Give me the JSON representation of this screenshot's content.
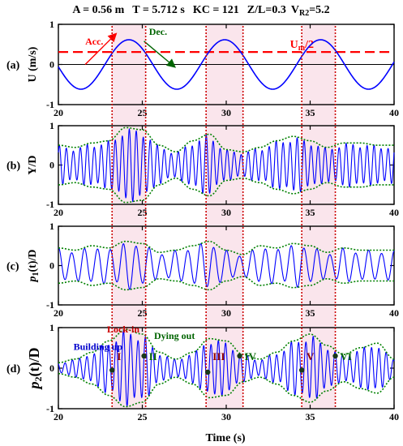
{
  "figure": {
    "title_parts": {
      "a": "A = 0.56 m",
      "t": "T = 5.712 s",
      "kc": "KC = 121",
      "zl": "Z/L=0.3",
      "vr_main": "V",
      "vr_sub": "R2",
      "vr_val": "=5.2"
    },
    "xlabel": "Time (s)"
  },
  "chart_data": [
    {
      "type": "line",
      "panel": "(a)",
      "ylabel": "U (m/s)",
      "xlim": [
        20,
        40
      ],
      "ylim": [
        -1,
        1
      ],
      "xticks": [
        "20",
        "25",
        "30",
        "35",
        "40"
      ],
      "yticks": [
        "-1",
        "0",
        "1"
      ],
      "series": [
        {
          "period_s": 5.712,
          "amplitude": 0.616,
          "mean": 0,
          "crest_times": [
            24.2,
            29.9,
            35.6
          ],
          "color": "#0000ff"
        }
      ],
      "reference_line": {
        "label_main": "U",
        "label_sub": "m",
        "label_tail": "/2",
        "value": 0.31,
        "color": "#ff0000",
        "style": "dashed"
      },
      "zero_line": 0,
      "annotations": [
        {
          "text": "Acc.",
          "color": "#ff0000",
          "arrow_from": [
            21.6,
            0.0
          ],
          "arrow_to": [
            23.4,
            0.75
          ]
        },
        {
          "text": "Dec.",
          "color": "#006400",
          "arrow_from": [
            25.1,
            0.58
          ],
          "arrow_to": [
            26.9,
            -0.05
          ]
        }
      ]
    },
    {
      "type": "line",
      "panel": "(b)",
      "ylabel": "Y/D",
      "xlim": [
        20,
        40
      ],
      "ylim": [
        -1,
        1
      ],
      "xticks": [
        "20",
        "25",
        "30",
        "35",
        "40"
      ],
      "yticks": [
        "-1",
        "0",
        "1"
      ],
      "series": [
        {
          "kind": "response",
          "frequency_hz": 2.4,
          "color": "#0000ff",
          "envelope": {
            "t": [
              20,
              21,
              22,
              23,
              24,
              25,
              26,
              27,
              28,
              29,
              30,
              31,
              32,
              33,
              34,
              35,
              36,
              37,
              38,
              39,
              40
            ],
            "a": [
              0.45,
              0.4,
              0.5,
              0.55,
              0.85,
              0.8,
              0.45,
              0.3,
              0.55,
              0.7,
              0.35,
              0.3,
              0.4,
              0.55,
              0.65,
              0.55,
              0.4,
              0.5,
              0.5,
              0.45,
              0.45
            ]
          }
        },
        {
          "kind": "envelope",
          "color": "#008000",
          "style": "dotted"
        }
      ]
    },
    {
      "type": "line",
      "panel": "(c)",
      "ylabel_main": "p",
      "ylabel_sub": "1",
      "ylabel_tail": "(t)/D",
      "xlim": [
        20,
        40
      ],
      "ylim": [
        -1,
        1
      ],
      "xticks": [
        "20",
        "25",
        "30",
        "35",
        "40"
      ],
      "yticks": [
        "-1",
        "0",
        "1"
      ],
      "series": [
        {
          "kind": "response",
          "frequency_hz": 1.3,
          "color": "#0000ff",
          "envelope": {
            "t": [
              20,
              21,
              22,
              23,
              24,
              25,
              26,
              27,
              28,
              29,
              30,
              31,
              32,
              33,
              34,
              35,
              36,
              37,
              38,
              39,
              40
            ],
            "a": [
              0.4,
              0.35,
              0.45,
              0.4,
              0.55,
              0.5,
              0.3,
              0.35,
              0.45,
              0.55,
              0.35,
              0.25,
              0.45,
              0.4,
              0.5,
              0.45,
              0.3,
              0.4,
              0.35,
              0.35,
              0.35
            ]
          }
        },
        {
          "kind": "envelope",
          "color": "#008000",
          "style": "dotted"
        }
      ]
    },
    {
      "type": "line",
      "panel": "(d)",
      "ylabel_main": "p",
      "ylabel_sub": "2",
      "ylabel_tail": "(t)/D",
      "xlim": [
        20,
        40
      ],
      "ylim": [
        -1,
        1
      ],
      "xticks": [
        "20",
        "25",
        "30",
        "35",
        "40"
      ],
      "yticks": [
        "-1",
        "0",
        "1"
      ],
      "series": [
        {
          "kind": "response",
          "frequency_hz": 2.3,
          "color": "#0000ff",
          "envelope": {
            "t": [
              20,
              21,
              22,
              23,
              24,
              25,
              26,
              27,
              28,
              29,
              30,
              31,
              32,
              33,
              34,
              35,
              36,
              37,
              38,
              39,
              40
            ],
            "a": [
              0.12,
              0.2,
              0.35,
              0.6,
              0.85,
              0.75,
              0.35,
              0.2,
              0.35,
              0.65,
              0.6,
              0.3,
              0.2,
              0.35,
              0.6,
              0.75,
              0.5,
              0.3,
              0.45,
              0.55,
              0.2
            ]
          }
        },
        {
          "kind": "envelope",
          "color": "#008000",
          "style": "dotted"
        }
      ],
      "annotations": [
        {
          "text": "Building up",
          "color": "#0000cc"
        },
        {
          "text": "Lock-in",
          "color": "#cc0000"
        },
        {
          "text": "Dying out",
          "color": "#006400"
        }
      ],
      "stage_markers": [
        {
          "label": "I",
          "t": 23.2,
          "y": -0.05,
          "color": "#8b0000"
        },
        {
          "label": "II",
          "t": 25.1,
          "y": 0.3,
          "color": "#006400"
        },
        {
          "label": "III",
          "t": 28.9,
          "y": -0.1,
          "color": "#8b0000"
        },
        {
          "label": "IV",
          "t": 30.8,
          "y": 0.3,
          "color": "#006400"
        },
        {
          "label": "V",
          "t": 34.5,
          "y": -0.05,
          "color": "#8b0000"
        },
        {
          "label": "VI",
          "t": 36.5,
          "y": 0.3,
          "color": "#006400"
        }
      ]
    }
  ],
  "vertical_markers": {
    "red_dotted": [
      23.2,
      25.2,
      28.8,
      31.0,
      34.5,
      36.5
    ],
    "shaded_bands": [
      [
        23.2,
        25.2
      ],
      [
        28.8,
        31.0
      ],
      [
        34.5,
        36.5
      ]
    ],
    "line_color": "#cc0000",
    "band_color": "#f4c6d4"
  }
}
